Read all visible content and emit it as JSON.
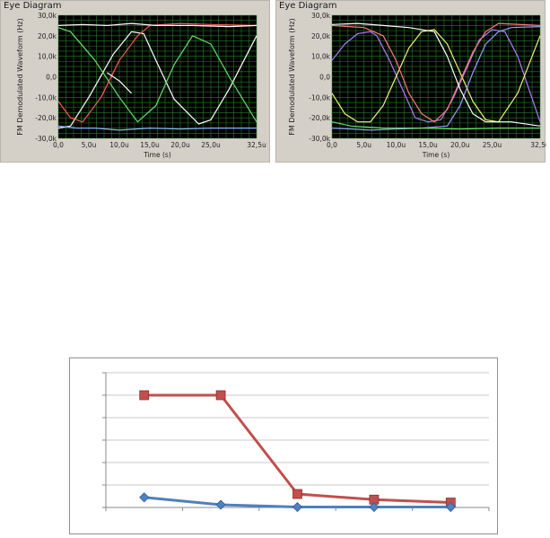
{
  "chart_data": [
    {
      "type": "line",
      "title": "Eye Diagram",
      "xlabel": "Time (s)",
      "ylabel": "FM Demodulated Waveform (Hz)",
      "xlim": [
        0,
        32.5
      ],
      "ylim": [
        -30000,
        30000
      ],
      "x_ticks": [
        "0,0",
        "5,0u",
        "10,0u",
        "15,0u",
        "20,0u",
        "25,0u",
        "32,5u"
      ],
      "y_ticks": [
        "30,0k",
        "20,0k",
        "10,0k",
        "0,0",
        "-10,0k",
        "-20,0k",
        "-30,0k"
      ],
      "grid": true,
      "background": "#000000",
      "grid_color": "#2e8a2e",
      "trace_colors": [
        "#ffffff",
        "#66e06a",
        "#ff5a5a",
        "#8ab4ff"
      ],
      "traces": [
        {
          "color": "#ffffff",
          "points": [
            [
              0,
              -25000
            ],
            [
              2,
              -24000
            ],
            [
              5,
              -10000
            ],
            [
              9,
              11000
            ],
            [
              12,
              22000
            ],
            [
              14,
              21000
            ],
            [
              16,
              8000
            ],
            [
              19,
              -11000
            ],
            [
              23,
              -23000
            ],
            [
              25,
              -21000
            ],
            [
              28,
              -6000
            ],
            [
              32.5,
              20000
            ]
          ]
        },
        {
          "color": "#66e06a",
          "points": [
            [
              0,
              24000
            ],
            [
              2,
              22000
            ],
            [
              6,
              8000
            ],
            [
              10,
              -10000
            ],
            [
              13,
              -22000
            ],
            [
              16,
              -14000
            ],
            [
              19,
              6000
            ],
            [
              22,
              20000
            ],
            [
              25,
              16000
            ],
            [
              28,
              0
            ],
            [
              32.5,
              -22000
            ]
          ]
        },
        {
          "color": "#ff5a5a",
          "points": [
            [
              0,
              -12000
            ],
            [
              2,
              -20000
            ],
            [
              4,
              -22000
            ],
            [
              7,
              -10000
            ],
            [
              10,
              8000
            ],
            [
              13,
              20000
            ],
            [
              15,
              25000
            ],
            [
              20,
              26000
            ],
            [
              25,
              25500
            ],
            [
              32.5,
              25000
            ]
          ]
        },
        {
          "color": "#8ab4ff",
          "points": [
            [
              0,
              -24000
            ],
            [
              3,
              -25000
            ],
            [
              6,
              -25000
            ],
            [
              10,
              -26000
            ],
            [
              15,
              -25000
            ],
            [
              20,
              -25500
            ],
            [
              25,
              -25000
            ],
            [
              32.5,
              -25000
            ]
          ]
        },
        {
          "color": "#ffffff",
          "points": [
            [
              0,
              25000
            ],
            [
              4,
              25500
            ],
            [
              8,
              25000
            ],
            [
              12,
              26000
            ],
            [
              16,
              25000
            ],
            [
              22,
              25000
            ],
            [
              28,
              24500
            ],
            [
              32.5,
              25000
            ]
          ]
        },
        {
          "color": "#ffffff",
          "points": [
            [
              8,
              2000
            ],
            [
              10,
              -2000
            ],
            [
              12,
              -8000
            ]
          ]
        }
      ]
    },
    {
      "type": "line",
      "title": "Eye Diagram",
      "xlabel": "Time (s)",
      "ylabel": "FM Demodulated Waveform (Hz)",
      "xlim": [
        0,
        32.5
      ],
      "ylim": [
        -30000,
        30000
      ],
      "x_ticks": [
        "0,0",
        "5,0u",
        "10,0u",
        "15,0u",
        "20,0u",
        "25,0u",
        "32,5u"
      ],
      "y_ticks": [
        "30,0k",
        "20,0k",
        "10,0k",
        "0,0",
        "-10,0k",
        "-20,0k",
        "-30,0k"
      ],
      "grid": true,
      "background": "#000000",
      "grid_color": "#2e8a2e",
      "trace_colors": [
        "#f5f07a",
        "#ff7a7a",
        "#9a9aff",
        "#b07aff",
        "#ffffff",
        "#66e06a"
      ],
      "traces": [
        {
          "color": "#b07aff",
          "points": [
            [
              0,
              8000
            ],
            [
              2,
              16000
            ],
            [
              4,
              21000
            ],
            [
              6,
              22000
            ],
            [
              7,
              20000
            ],
            [
              9,
              8000
            ],
            [
              11,
              -6000
            ],
            [
              13,
              -20000
            ],
            [
              15,
              -22000
            ],
            [
              17,
              -21000
            ],
            [
              19,
              -10000
            ],
            [
              21,
              4000
            ],
            [
              23,
              18000
            ],
            [
              25,
              23000
            ],
            [
              27,
              22000
            ],
            [
              29,
              10000
            ],
            [
              32.5,
              -22000
            ]
          ]
        },
        {
          "color": "#f5f07a",
          "points": [
            [
              0,
              -8000
            ],
            [
              2,
              -18000
            ],
            [
              4,
              -22000
            ],
            [
              6,
              -22000
            ],
            [
              8,
              -14000
            ],
            [
              10,
              0
            ],
            [
              12,
              14000
            ],
            [
              14,
              22000
            ],
            [
              16,
              23000
            ],
            [
              18,
              16000
            ],
            [
              20,
              2000
            ],
            [
              22,
              -12000
            ],
            [
              24,
              -21000
            ],
            [
              26,
              -22000
            ],
            [
              29,
              -8000
            ],
            [
              32.5,
              20000
            ]
          ]
        },
        {
          "color": "#ff7a7a",
          "points": [
            [
              0,
              25000
            ],
            [
              5,
              24000
            ],
            [
              8,
              20000
            ],
            [
              10,
              8000
            ],
            [
              12,
              -8000
            ],
            [
              14,
              -18000
            ],
            [
              16,
              -22000
            ],
            [
              18,
              -16000
            ],
            [
              20,
              -2000
            ],
            [
              22,
              12000
            ],
            [
              24,
              22000
            ],
            [
              26,
              26000
            ],
            [
              32.5,
              25000
            ]
          ]
        },
        {
          "color": "#9a9aff",
          "points": [
            [
              0,
              -25000
            ],
            [
              6,
              -26000
            ],
            [
              10,
              -25500
            ],
            [
              14,
              -25000
            ],
            [
              18,
              -24000
            ],
            [
              20,
              -14000
            ],
            [
              22,
              2000
            ],
            [
              24,
              16000
            ],
            [
              26,
              22000
            ],
            [
              28,
              24000
            ],
            [
              32.5,
              24500
            ]
          ]
        },
        {
          "color": "#ffffff",
          "points": [
            [
              0,
              25500
            ],
            [
              4,
              26000
            ],
            [
              8,
              25000
            ],
            [
              12,
              24000
            ],
            [
              16,
              22000
            ],
            [
              18,
              10000
            ],
            [
              20,
              -6000
            ],
            [
              22,
              -18000
            ],
            [
              24,
              -22000
            ],
            [
              26,
              -22000
            ],
            [
              28,
              -22000
            ],
            [
              32.5,
              -24000
            ]
          ]
        },
        {
          "color": "#66e06a",
          "points": [
            [
              0,
              -22000
            ],
            [
              3,
              -24000
            ],
            [
              8,
              -25000
            ],
            [
              14,
              -25000
            ],
            [
              20,
              -25500
            ],
            [
              26,
              -25000
            ],
            [
              32.5,
              -25000
            ]
          ]
        }
      ]
    },
    {
      "type": "line",
      "title": "",
      "xlabel": "",
      "ylabel": "",
      "x": [
        1,
        2,
        3,
        4,
        5
      ],
      "ylim": [
        0,
        6
      ],
      "grid": true,
      "legend": "none",
      "series": [
        {
          "color": "#c0504d",
          "marker": "square",
          "values": [
            5,
            5,
            0.6,
            0.35,
            0.22
          ]
        },
        {
          "color": "#4f81bd",
          "marker": "diamond",
          "values": [
            0.45,
            0.12,
            0.02,
            0.02,
            0.02
          ]
        }
      ]
    }
  ]
}
